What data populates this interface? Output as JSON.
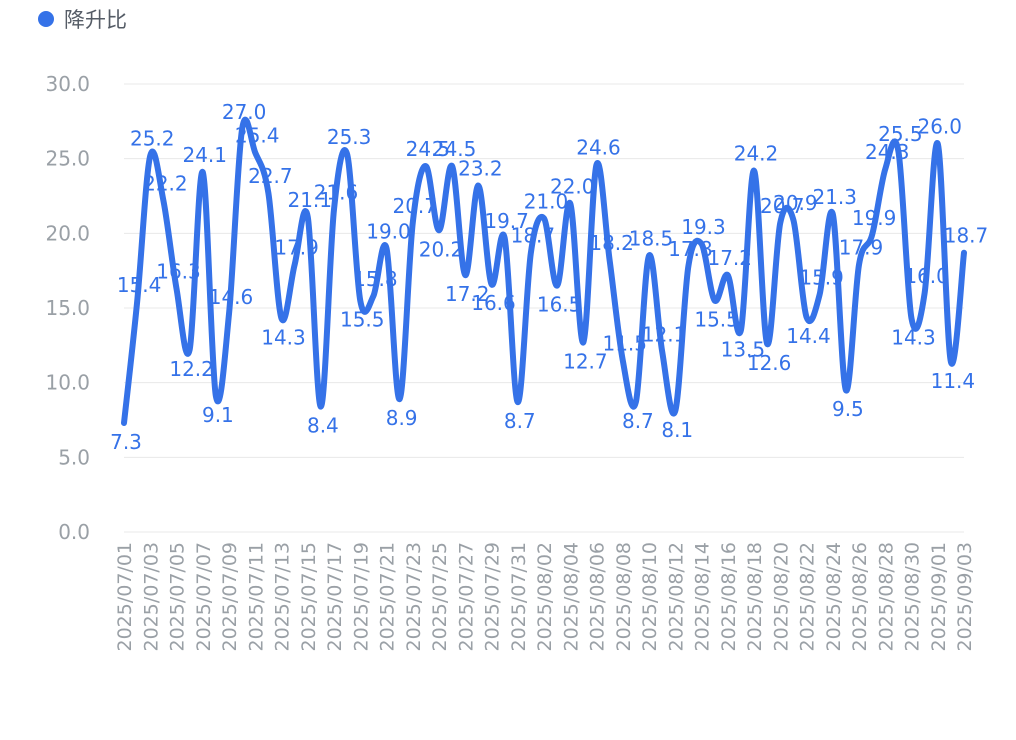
{
  "legend": {
    "label": "降升比"
  },
  "colors": {
    "series": "#3572E8",
    "grid": "#e8e8e8",
    "tick": "#9aa0a6",
    "label": "#3572E8"
  },
  "chart_data": {
    "type": "line",
    "smooth": true,
    "ylim": [
      0,
      30
    ],
    "y_ticks": [
      "0.0",
      "5.0",
      "10.0",
      "15.0",
      "20.0",
      "25.0",
      "30.0"
    ],
    "grid": true,
    "legend_position": "top-left",
    "x": [
      "2025/07/01",
      "2025/07/02",
      "2025/07/03",
      "2025/07/04",
      "2025/07/05",
      "2025/07/06",
      "2025/07/07",
      "2025/07/08",
      "2025/07/09",
      "2025/07/10",
      "2025/07/11",
      "2025/07/12",
      "2025/07/13",
      "2025/07/14",
      "2025/07/15",
      "2025/07/16",
      "2025/07/17",
      "2025/07/18",
      "2025/07/19",
      "2025/07/20",
      "2025/07/21",
      "2025/07/22",
      "2025/07/23",
      "2025/07/24",
      "2025/07/25",
      "2025/07/26",
      "2025/07/27",
      "2025/07/28",
      "2025/07/29",
      "2025/07/30",
      "2025/07/31",
      "2025/08/01",
      "2025/08/02",
      "2025/08/03",
      "2025/08/04",
      "2025/08/05",
      "2025/08/06",
      "2025/08/07",
      "2025/08/08",
      "2025/08/09",
      "2025/08/10",
      "2025/08/11",
      "2025/08/12",
      "2025/08/13",
      "2025/08/14",
      "2025/08/15",
      "2025/08/16",
      "2025/08/17",
      "2025/08/18",
      "2025/08/19",
      "2025/08/20",
      "2025/08/21",
      "2025/08/22",
      "2025/08/23",
      "2025/08/24",
      "2025/08/25",
      "2025/08/26",
      "2025/08/27",
      "2025/08/28",
      "2025/08/29",
      "2025/08/30",
      "2025/08/31",
      "2025/09/01",
      "2025/09/02",
      "2025/09/03"
    ],
    "x_tick_labels": [
      "2025/07/01",
      "2025/07/03",
      "2025/07/05",
      "2025/07/07",
      "2025/07/09",
      "2025/07/11",
      "2025/07/13",
      "2025/07/15",
      "2025/07/17",
      "2025/07/19",
      "2025/07/21",
      "2025/07/23",
      "2025/07/25",
      "2025/07/27",
      "2025/07/29",
      "2025/07/31",
      "2025/08/02",
      "2025/08/04",
      "2025/08/06",
      "2025/08/08",
      "2025/08/10",
      "2025/08/12",
      "2025/08/14",
      "2025/08/16",
      "2025/08/18",
      "2025/08/20",
      "2025/08/22",
      "2025/08/24",
      "2025/08/26",
      "2025/08/28",
      "2025/08/30",
      "2025/09/01",
      "2025/09/03"
    ],
    "series": [
      {
        "name": "降升比",
        "values": [
          7.3,
          15.4,
          25.2,
          22.2,
          16.3,
          12.2,
          24.1,
          9.1,
          14.6,
          27.0,
          25.4,
          22.7,
          14.3,
          17.9,
          21.1,
          8.4,
          21.6,
          25.3,
          15.5,
          15.8,
          19.0,
          8.9,
          20.7,
          24.5,
          20.2,
          24.5,
          17.2,
          23.2,
          16.6,
          19.7,
          8.7,
          18.7,
          21.0,
          16.5,
          22.0,
          12.7,
          24.6,
          18.2,
          11.5,
          8.7,
          18.5,
          12.1,
          8.1,
          17.8,
          19.3,
          15.5,
          17.2,
          13.5,
          24.2,
          12.6,
          20.7,
          20.9,
          14.4,
          15.9,
          21.3,
          9.5,
          17.9,
          19.9,
          24.3,
          25.5,
          14.3,
          16.0,
          26.0,
          11.4,
          18.7
        ]
      }
    ]
  }
}
